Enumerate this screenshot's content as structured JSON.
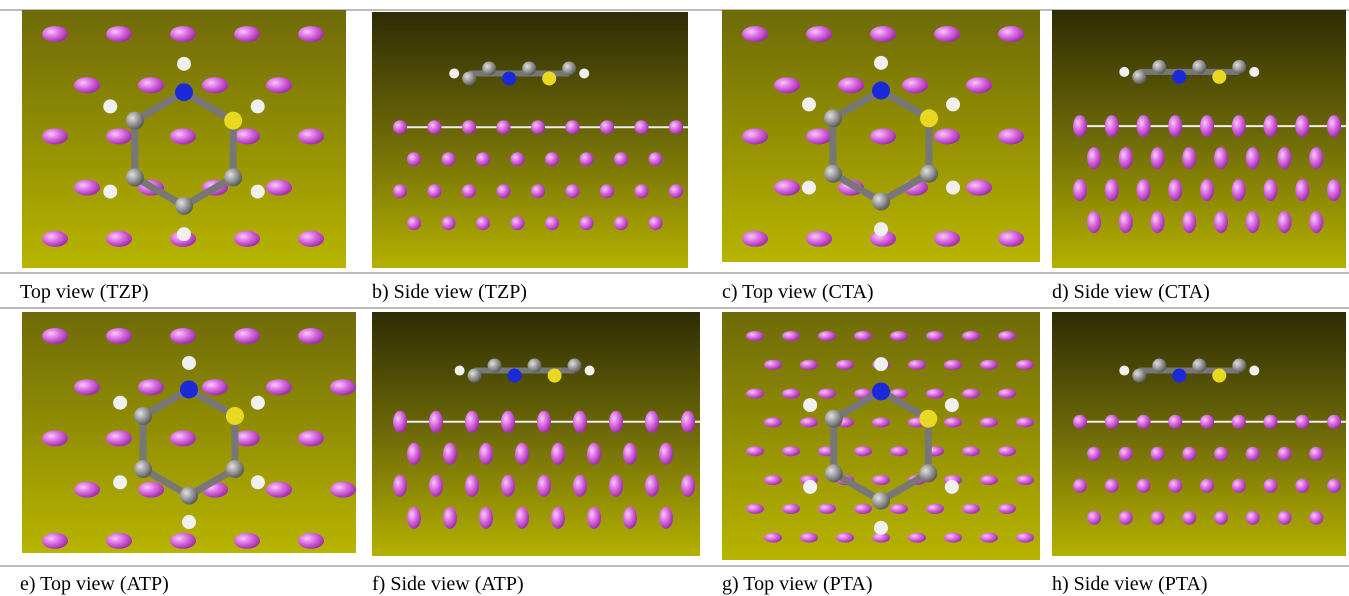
{
  "figure": {
    "captions": [
      "Top view (TZP)",
      "b) Side view (TZP)",
      "c) Top view (CTA)",
      "d) Side view (CTA)",
      "e) Top view (ATP)",
      "f) Side view (ATP)",
      "g) Top view (PTA)",
      "h) Side view (PTA)"
    ]
  }
}
